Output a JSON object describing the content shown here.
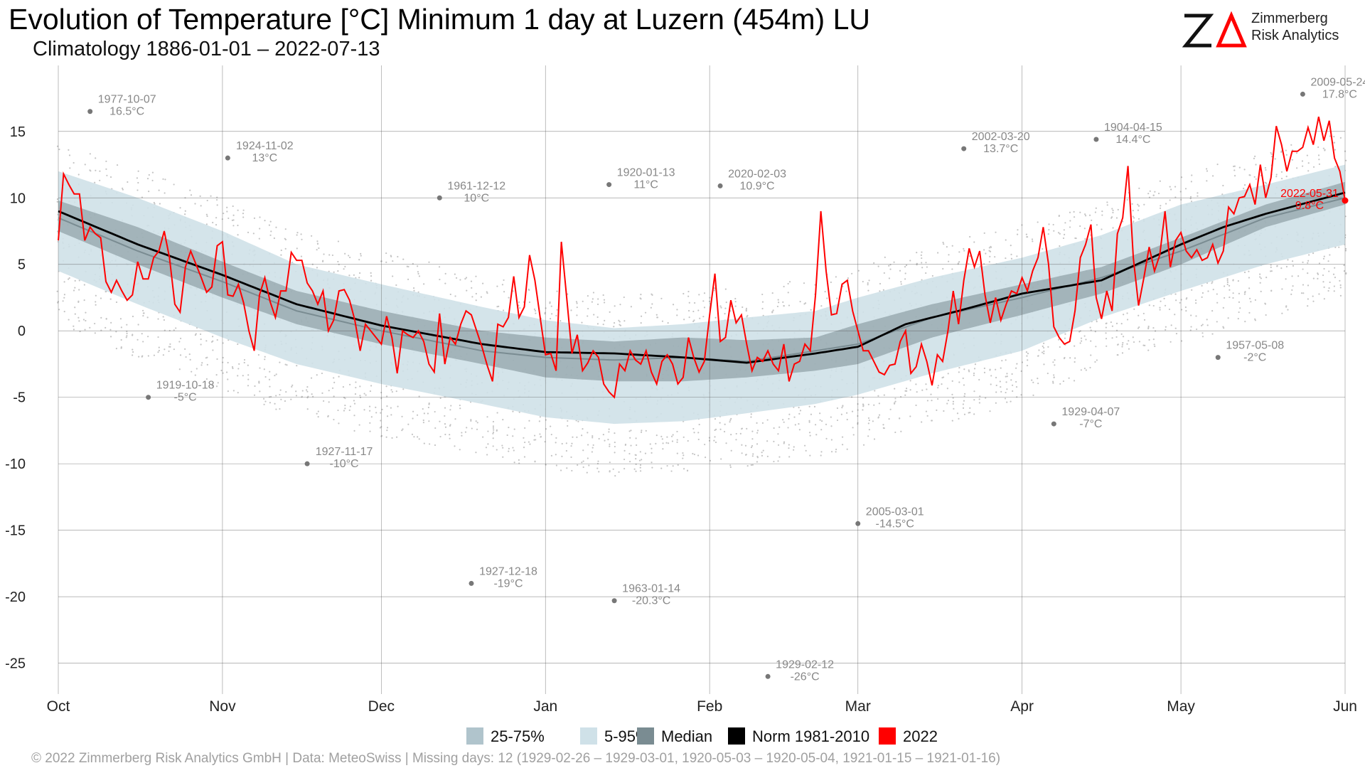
{
  "title": "Evolution of Temperature [°C] Minimum 1 day at Luzern (454m) LU",
  "subtitle": "Climatology 1886-01-01 – 2022-07-13",
  "logo": {
    "mark": "ZΔ",
    "line1": "Zimmerberg",
    "line2": "Risk Analytics",
    "accent": "#ff0000"
  },
  "footer": "©  2022 Zimmerberg Risk Analytics GmbH | Data: MeteoSwiss | Missing days: 12 (1929-02-26 – 1929-03-01, 1920-05-03 – 1920-05-04, 1921-01-15 – 1921-01-16)",
  "legend": [
    {
      "label": "25-75%",
      "color": "#b0c4cc"
    },
    {
      "label": "5-95%",
      "color": "#cfe1e8"
    },
    {
      "label": "Median",
      "color": "#7a8c92"
    },
    {
      "label": "Norm 1981-2010",
      "color": "#000000"
    },
    {
      "label": "2022",
      "color": "#ff0000"
    }
  ],
  "chart_data": {
    "type": "line",
    "x_unit": "days from Oct 1",
    "xlim": [
      0,
      243
    ],
    "ylim": [
      -27,
      19
    ],
    "y_ticks": [
      15,
      10,
      5,
      0,
      -5,
      -10,
      -15,
      -20,
      -25
    ],
    "x_ticks": [
      {
        "label": "Oct",
        "day": 0
      },
      {
        "label": "Nov",
        "day": 31
      },
      {
        "label": "Dec",
        "day": 61
      },
      {
        "label": "Jan",
        "day": 92
      },
      {
        "label": "Feb",
        "day": 123
      },
      {
        "label": "Mar",
        "day": 151
      },
      {
        "label": "Apr",
        "day": 182
      },
      {
        "label": "May",
        "day": 212
      },
      {
        "label": "Jun",
        "day": 243
      }
    ],
    "grid": true,
    "legend_position": "bottom",
    "colors": {
      "band_5_95": "#cfe1e8",
      "band_25_75": "#b0c4cc",
      "median": "#7a8c92",
      "norm": "#000000",
      "current": "#ff0000",
      "records": "#777777",
      "dots": "#c4c4c4"
    },
    "bands": {
      "p05": [
        [
          0,
          4.5
        ],
        [
          15,
          2.0
        ],
        [
          31,
          -0.5
        ],
        [
          45,
          -2.5
        ],
        [
          61,
          -4.0
        ],
        [
          80,
          -5.5
        ],
        [
          92,
          -6.5
        ],
        [
          105,
          -7.0
        ],
        [
          118,
          -6.8
        ],
        [
          130,
          -6.2
        ],
        [
          143,
          -5.5
        ],
        [
          151,
          -4.8
        ],
        [
          165,
          -3.2
        ],
        [
          182,
          -1.5
        ],
        [
          197,
          1.0
        ],
        [
          212,
          3.0
        ],
        [
          228,
          5.0
        ],
        [
          243,
          6.5
        ]
      ],
      "p25": [
        [
          0,
          7.5
        ],
        [
          15,
          5.0
        ],
        [
          31,
          2.5
        ],
        [
          45,
          0.5
        ],
        [
          61,
          -1.0
        ],
        [
          80,
          -2.5
        ],
        [
          92,
          -3.5
        ],
        [
          105,
          -3.8
        ],
        [
          118,
          -3.8
        ],
        [
          130,
          -3.5
        ],
        [
          143,
          -3.0
        ],
        [
          151,
          -2.5
        ],
        [
          165,
          -0.5
        ],
        [
          182,
          1.2
        ],
        [
          197,
          2.8
        ],
        [
          212,
          5.0
        ],
        [
          228,
          7.8
        ],
        [
          243,
          9.5
        ]
      ],
      "p75": [
        [
          0,
          9.8
        ],
        [
          15,
          7.8
        ],
        [
          31,
          5.2
        ],
        [
          45,
          3.0
        ],
        [
          61,
          1.5
        ],
        [
          80,
          0.0
        ],
        [
          92,
          -0.5
        ],
        [
          105,
          -0.8
        ],
        [
          118,
          -0.5
        ],
        [
          130,
          -0.7
        ],
        [
          143,
          -0.5
        ],
        [
          151,
          0.5
        ],
        [
          165,
          2.0
        ],
        [
          182,
          3.5
        ],
        [
          197,
          4.8
        ],
        [
          212,
          7.0
        ],
        [
          228,
          9.5
        ],
        [
          243,
          11.2
        ]
      ],
      "p95": [
        [
          0,
          12.0
        ],
        [
          15,
          10.0
        ],
        [
          31,
          7.5
        ],
        [
          45,
          5.0
        ],
        [
          61,
          3.5
        ],
        [
          80,
          1.8
        ],
        [
          92,
          0.8
        ],
        [
          105,
          0.2
        ],
        [
          118,
          0.5
        ],
        [
          130,
          1.0
        ],
        [
          143,
          1.5
        ],
        [
          151,
          2.5
        ],
        [
          165,
          4.0
        ],
        [
          182,
          5.5
        ],
        [
          197,
          7.2
        ],
        [
          212,
          9.5
        ],
        [
          228,
          11.0
        ],
        [
          243,
          12.5
        ]
      ],
      "median": [
        [
          0,
          8.5
        ],
        [
          15,
          6.0
        ],
        [
          31,
          3.7
        ],
        [
          45,
          1.5
        ],
        [
          61,
          0.0
        ],
        [
          80,
          -1.5
        ],
        [
          92,
          -2.0
        ],
        [
          105,
          -2.2
        ],
        [
          118,
          -2.0
        ],
        [
          130,
          -2.3
        ],
        [
          143,
          -1.5
        ],
        [
          151,
          -1.0
        ],
        [
          165,
          1.0
        ],
        [
          182,
          2.5
        ],
        [
          197,
          4.0
        ],
        [
          212,
          6.0
        ],
        [
          228,
          8.5
        ],
        [
          243,
          10.0
        ]
      ],
      "norm": [
        [
          0,
          9.0
        ],
        [
          15,
          6.5
        ],
        [
          31,
          4.2
        ],
        [
          45,
          2.0
        ],
        [
          61,
          0.4
        ],
        [
          80,
          -1.0
        ],
        [
          92,
          -1.6
        ],
        [
          105,
          -1.7
        ],
        [
          118,
          -2.0
        ],
        [
          130,
          -2.4
        ],
        [
          143,
          -1.7
        ],
        [
          151,
          -1.2
        ],
        [
          160,
          0.5
        ],
        [
          170,
          1.5
        ],
        [
          182,
          2.8
        ],
        [
          197,
          3.8
        ],
        [
          212,
          6.5
        ],
        [
          220,
          7.8
        ],
        [
          228,
          8.8
        ],
        [
          243,
          10.4
        ]
      ]
    },
    "series_2022": [
      [
        0,
        6.8
      ],
      [
        1,
        11.8
      ],
      [
        2,
        11.0
      ],
      [
        3,
        10.3
      ],
      [
        4,
        10.3
      ],
      [
        5,
        6.8
      ],
      [
        6,
        7.8
      ],
      [
        7,
        7.3
      ],
      [
        8,
        7.0
      ],
      [
        9,
        3.7
      ],
      [
        10,
        2.9
      ],
      [
        11,
        3.8
      ],
      [
        12,
        3.0
      ],
      [
        13,
        2.3
      ],
      [
        14,
        2.7
      ],
      [
        15,
        5.2
      ],
      [
        16,
        3.9
      ],
      [
        17,
        3.9
      ],
      [
        18,
        5.5
      ],
      [
        19,
        6.0
      ],
      [
        20,
        7.5
      ],
      [
        21,
        5.5
      ],
      [
        22,
        2.0
      ],
      [
        23,
        1.4
      ],
      [
        24,
        4.8
      ],
      [
        25,
        6.0
      ],
      [
        26,
        5.0
      ],
      [
        27,
        4.0
      ],
      [
        28,
        2.9
      ],
      [
        29,
        3.3
      ],
      [
        30,
        6.4
      ],
      [
        31,
        6.7
      ],
      [
        32,
        2.7
      ],
      [
        33,
        2.6
      ],
      [
        34,
        3.5
      ],
      [
        35,
        2.1
      ],
      [
        36,
        0.0
      ],
      [
        37,
        -1.5
      ],
      [
        38,
        2.7
      ],
      [
        39,
        4.0
      ],
      [
        40,
        2.2
      ],
      [
        41,
        1.0
      ],
      [
        42,
        3.0
      ],
      [
        43,
        3.0
      ],
      [
        44,
        5.9
      ],
      [
        45,
        5.3
      ],
      [
        46,
        5.3
      ],
      [
        47,
        3.6
      ],
      [
        48,
        3.0
      ],
      [
        49,
        2.0
      ],
      [
        50,
        3.0
      ],
      [
        51,
        0.0
      ],
      [
        52,
        0.8
      ],
      [
        53,
        3.0
      ],
      [
        54,
        3.1
      ],
      [
        55,
        2.3
      ],
      [
        56,
        0.8
      ],
      [
        57,
        -1.5
      ],
      [
        58,
        0.5
      ],
      [
        59,
        0.0
      ],
      [
        60,
        -0.5
      ],
      [
        61,
        -1.0
      ],
      [
        62,
        1.1
      ],
      [
        63,
        -0.5
      ],
      [
        64,
        -3.2
      ],
      [
        65,
        0.0
      ],
      [
        66,
        -0.3
      ],
      [
        67,
        -0.5
      ],
      [
        68,
        0.0
      ],
      [
        69,
        -0.8
      ],
      [
        70,
        -2.5
      ],
      [
        71,
        -3.1
      ],
      [
        72,
        1.3
      ],
      [
        73,
        -2.5
      ],
      [
        74,
        -0.5
      ],
      [
        75,
        -1.0
      ],
      [
        76,
        0.5
      ],
      [
        77,
        1.5
      ],
      [
        78,
        1.2
      ],
      [
        79,
        0.0
      ],
      [
        80,
        -1.2
      ],
      [
        81,
        -2.6
      ],
      [
        82,
        -3.8
      ],
      [
        83,
        0.5
      ],
      [
        84,
        0.3
      ],
      [
        85,
        1.0
      ],
      [
        86,
        4.1
      ],
      [
        87,
        1.0
      ],
      [
        88,
        1.8
      ],
      [
        89,
        5.7
      ],
      [
        90,
        3.8
      ],
      [
        91,
        1.0
      ],
      [
        92,
        -1.8
      ],
      [
        93,
        -1.7
      ],
      [
        94,
        -3.0
      ],
      [
        95,
        6.7
      ],
      [
        96,
        2.5
      ],
      [
        97,
        -1.7
      ],
      [
        98,
        -0.3
      ],
      [
        99,
        -3.0
      ],
      [
        100,
        -2.4
      ],
      [
        101,
        -1.5
      ],
      [
        102,
        -2.0
      ],
      [
        103,
        -4.0
      ],
      [
        104,
        -4.6
      ],
      [
        105,
        -5.0
      ],
      [
        106,
        -2.5
      ],
      [
        107,
        -3.0
      ],
      [
        108,
        -1.5
      ],
      [
        109,
        -2.2
      ],
      [
        110,
        -2.5
      ],
      [
        111,
        -1.5
      ],
      [
        112,
        -3.1
      ],
      [
        113,
        -4.0
      ],
      [
        114,
        -2.3
      ],
      [
        115,
        -1.8
      ],
      [
        116,
        -2.5
      ],
      [
        117,
        -4.0
      ],
      [
        118,
        -3.5
      ],
      [
        119,
        -0.5
      ],
      [
        120,
        -2.0
      ],
      [
        121,
        -3.1
      ],
      [
        122,
        -2.3
      ],
      [
        123,
        1.2
      ],
      [
        124,
        4.3
      ],
      [
        125,
        -0.8
      ],
      [
        126,
        -0.5
      ],
      [
        127,
        2.3
      ],
      [
        128,
        0.6
      ],
      [
        129,
        1.2
      ],
      [
        130,
        -1.0
      ],
      [
        131,
        -3.0
      ],
      [
        132,
        -2.0
      ],
      [
        133,
        -2.3
      ],
      [
        134,
        -1.5
      ],
      [
        135,
        -2.5
      ],
      [
        136,
        -3.0
      ],
      [
        137,
        -1.0
      ],
      [
        138,
        -3.8
      ],
      [
        139,
        -2.5
      ],
      [
        140,
        -2.3
      ],
      [
        141,
        -1.0
      ],
      [
        142,
        -1.5
      ],
      [
        143,
        2.7
      ],
      [
        144,
        9.0
      ],
      [
        145,
        4.5
      ],
      [
        146,
        1.2
      ],
      [
        147,
        1.3
      ],
      [
        148,
        3.5
      ],
      [
        149,
        3.8
      ],
      [
        150,
        1.5
      ],
      [
        151,
        0.0
      ],
      [
        152,
        -1.5
      ],
      [
        153,
        -1.5
      ],
      [
        154,
        -2.3
      ],
      [
        155,
        -3.1
      ],
      [
        156,
        -3.3
      ],
      [
        157,
        -2.6
      ],
      [
        158,
        -2.5
      ],
      [
        159,
        -0.8
      ],
      [
        160,
        0.0
      ],
      [
        161,
        -3.2
      ],
      [
        162,
        -2.7
      ],
      [
        163,
        -1.0
      ],
      [
        164,
        -2.3
      ],
      [
        165,
        -4.1
      ],
      [
        166,
        -1.8
      ],
      [
        167,
        -2.3
      ],
      [
        168,
        0.0
      ],
      [
        169,
        3.0
      ],
      [
        170,
        0.5
      ],
      [
        171,
        3.8
      ],
      [
        172,
        6.2
      ],
      [
        173,
        4.8
      ],
      [
        174,
        6.0
      ],
      [
        175,
        2.7
      ],
      [
        176,
        0.6
      ],
      [
        177,
        2.5
      ],
      [
        178,
        0.8
      ],
      [
        179,
        2.0
      ],
      [
        180,
        3.0
      ],
      [
        181,
        2.8
      ],
      [
        182,
        4.0
      ],
      [
        183,
        3.0
      ],
      [
        184,
        4.5
      ],
      [
        185,
        5.5
      ],
      [
        186,
        7.8
      ],
      [
        187,
        5.0
      ],
      [
        188,
        0.3
      ],
      [
        189,
        -0.5
      ],
      [
        190,
        -1.0
      ],
      [
        191,
        -0.8
      ],
      [
        192,
        1.5
      ],
      [
        193,
        5.5
      ],
      [
        194,
        6.5
      ],
      [
        195,
        8.0
      ],
      [
        196,
        2.5
      ],
      [
        197,
        0.9
      ],
      [
        198,
        3.0
      ],
      [
        199,
        1.5
      ],
      [
        200,
        7.3
      ],
      [
        201,
        8.5
      ],
      [
        202,
        12.4
      ],
      [
        203,
        5.5
      ],
      [
        204,
        1.9
      ],
      [
        205,
        4.0
      ],
      [
        206,
        6.3
      ],
      [
        207,
        4.5
      ],
      [
        208,
        5.7
      ],
      [
        209,
        9.0
      ],
      [
        210,
        4.8
      ],
      [
        211,
        6.8
      ],
      [
        212,
        7.4
      ],
      [
        213,
        6.0
      ],
      [
        214,
        5.5
      ],
      [
        215,
        6.1
      ],
      [
        216,
        5.3
      ],
      [
        217,
        5.5
      ],
      [
        218,
        6.5
      ],
      [
        219,
        5.1
      ],
      [
        220,
        6.0
      ],
      [
        221,
        9.3
      ],
      [
        222,
        8.8
      ],
      [
        223,
        10.0
      ],
      [
        224,
        10.1
      ],
      [
        225,
        11.0
      ],
      [
        226,
        9.5
      ],
      [
        227,
        12.5
      ],
      [
        228,
        10.0
      ],
      [
        229,
        11.5
      ],
      [
        230,
        15.4
      ],
      [
        231,
        14.0
      ],
      [
        232,
        12.0
      ],
      [
        233,
        13.5
      ],
      [
        234,
        13.5
      ],
      [
        235,
        13.8
      ],
      [
        236,
        15.3
      ],
      [
        237,
        14.0
      ],
      [
        238,
        16.1
      ],
      [
        239,
        14.3
      ],
      [
        240,
        15.8
      ],
      [
        241,
        13.0
      ],
      [
        242,
        12.0
      ],
      [
        243,
        9.8
      ]
    ],
    "records": [
      {
        "day": 6,
        "value": 16.5,
        "date": "1977-10-07",
        "label": "16.5°C"
      },
      {
        "day": 32,
        "value": 13.0,
        "date": "1924-11-02",
        "label": "13°C"
      },
      {
        "day": 72,
        "value": 10.0,
        "date": "1961-12-12",
        "label": "10°C"
      },
      {
        "day": 104,
        "value": 11.0,
        "date": "1920-01-13",
        "label": "11°C"
      },
      {
        "day": 125,
        "value": 10.9,
        "date": "2020-02-03",
        "label": "10.9°C"
      },
      {
        "day": 171,
        "value": 13.7,
        "date": "2002-03-20",
        "label": "13.7°C"
      },
      {
        "day": 196,
        "value": 14.4,
        "date": "1904-04-15",
        "label": "14.4°C"
      },
      {
        "day": 235,
        "value": 17.8,
        "date": "2009-05-24",
        "label": "17.8°C"
      },
      {
        "day": 17,
        "value": -5.0,
        "date": "1919-10-18",
        "label": "-5°C"
      },
      {
        "day": 47,
        "value": -10.0,
        "date": "1927-11-17",
        "label": "-10°C"
      },
      {
        "day": 78,
        "value": -19.0,
        "date": "1927-12-18",
        "label": "-19°C"
      },
      {
        "day": 105,
        "value": -20.3,
        "date": "1963-01-14",
        "label": "-20.3°C"
      },
      {
        "day": 134,
        "value": -26.0,
        "date": "1929-02-12",
        "label": "-26°C"
      },
      {
        "day": 151,
        "value": -14.5,
        "date": "2005-03-01",
        "label": "-14.5°C"
      },
      {
        "day": 188,
        "value": -7.0,
        "date": "1929-04-07",
        "label": "-7°C"
      },
      {
        "day": 219,
        "value": -2.0,
        "date": "1957-05-08",
        "label": "-2°C"
      }
    ],
    "current_point": {
      "day": 243,
      "value": 9.8,
      "date": "2022-05-31",
      "label": "9.8°C"
    }
  }
}
